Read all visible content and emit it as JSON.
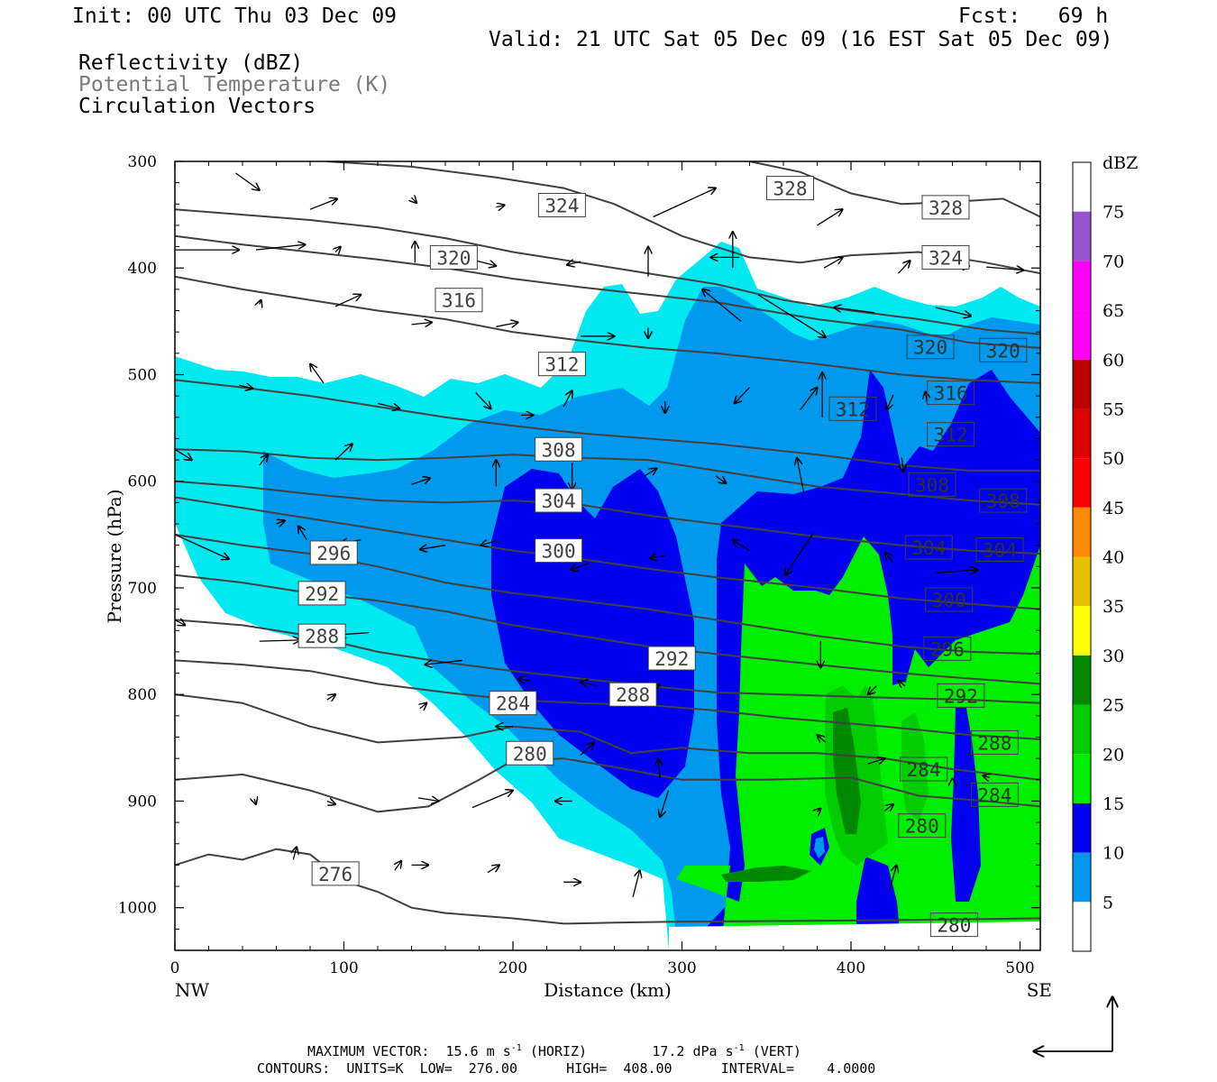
{
  "header": {
    "init": "Init: 00 UTC Thu 03 Dec 09",
    "fcst": "Fcst:   69 h",
    "valid": "Valid: 21 UTC Sat 05 Dec 09 (16 EST Sat 05 Dec 09)",
    "field1": "Reflectivity (dBZ)",
    "field2": "Potential Temperature (K)",
    "field3": "Circulation Vectors"
  },
  "footer": {
    "max_vector_label": "MAXIMUM VECTOR:",
    "max_horiz": "15.6 m s",
    "horiz_exp": "-1",
    "horiz_unit": "(HORIZ)",
    "max_vert": "17.2 dPa s",
    "vert_exp": "-1",
    "vert_unit": "(VERT)",
    "contours": "CONTOURS:  UNITS=K  LOW=  276.00      HIGH=  408.00      INTERVAL=    4.0000"
  },
  "colors": {
    "c5": "#00e8f0",
    "c10": "#0099ee",
    "c15": "#0000ee",
    "c20": "#00ee00",
    "c25": "#00cc00",
    "c30": "#008800",
    "c35": "#ffff00",
    "c40": "#e8c000",
    "c45": "#ff8800",
    "c50": "#ff0000",
    "c55": "#dd0000",
    "c60": "#bb0000",
    "c65": "#ff00ff",
    "c70": "#ff00ff",
    "c75": "#9955cc",
    "theta_line": "#404040"
  },
  "chart_data": {
    "type": "heatmap",
    "xlabel": "Distance (km)",
    "ylabel": "Pressure (hPa)",
    "xlim": [
      0,
      512
    ],
    "ylim": [
      1040,
      300
    ],
    "x_ticks": [
      0,
      100,
      200,
      300,
      400,
      500
    ],
    "y_ticks": [
      300,
      400,
      500,
      600,
      700,
      800,
      900,
      1000
    ],
    "x_end_left": "NW",
    "x_end_right": "SE",
    "colorbar": {
      "title": "dBZ",
      "levels": [
        75,
        70,
        65,
        60,
        55,
        50,
        45,
        40,
        35,
        30,
        25,
        20,
        15,
        10,
        5
      ]
    },
    "theta_contours": [
      {
        "label": "276",
        "x": 95,
        "p": 968
      },
      {
        "label": "280",
        "x": 210,
        "p": 855
      },
      {
        "label": "284",
        "x": 200,
        "p": 808
      },
      {
        "label": "288",
        "x": 87,
        "p": 745
      },
      {
        "label": "292",
        "x": 87,
        "p": 705
      },
      {
        "label": "296",
        "x": 94,
        "p": 667
      },
      {
        "label": "300",
        "x": 227,
        "p": 665
      },
      {
        "label": "304",
        "x": 227,
        "p": 618
      },
      {
        "label": "308",
        "x": 227,
        "p": 570
      },
      {
        "label": "312",
        "x": 229,
        "p": 490
      },
      {
        "label": "316",
        "x": 168,
        "p": 430
      },
      {
        "label": "320",
        "x": 165,
        "p": 390
      },
      {
        "label": "324",
        "x": 229,
        "p": 341
      },
      {
        "label": "328",
        "x": 364,
        "p": 325
      },
      {
        "label": "328",
        "x": 456,
        "p": 343
      },
      {
        "label": "324",
        "x": 456,
        "p": 390
      },
      {
        "label": "320",
        "x": 447,
        "p": 474
      },
      {
        "label": "320",
        "x": 490,
        "p": 477
      },
      {
        "label": "316",
        "x": 459,
        "p": 517
      },
      {
        "label": "312",
        "x": 401,
        "p": 532
      },
      {
        "label": "312",
        "x": 459,
        "p": 556
      },
      {
        "label": "308",
        "x": 448,
        "p": 603
      },
      {
        "label": "308",
        "x": 490,
        "p": 618
      },
      {
        "label": "304",
        "x": 446,
        "p": 662
      },
      {
        "label": "304",
        "x": 488,
        "p": 664
      },
      {
        "label": "300",
        "x": 458,
        "p": 711
      },
      {
        "label": "296",
        "x": 457,
        "p": 757
      },
      {
        "label": "292",
        "x": 294,
        "p": 766
      },
      {
        "label": "292",
        "x": 465,
        "p": 801
      },
      {
        "label": "288",
        "x": 271,
        "p": 800
      },
      {
        "label": "288",
        "x": 485,
        "p": 845
      },
      {
        "label": "284",
        "x": 443,
        "p": 870
      },
      {
        "label": "284",
        "x": 485,
        "p": 894
      },
      {
        "label": "280",
        "x": 442,
        "p": 923
      },
      {
        "label": "280",
        "x": 461,
        "p": 1016
      }
    ]
  }
}
